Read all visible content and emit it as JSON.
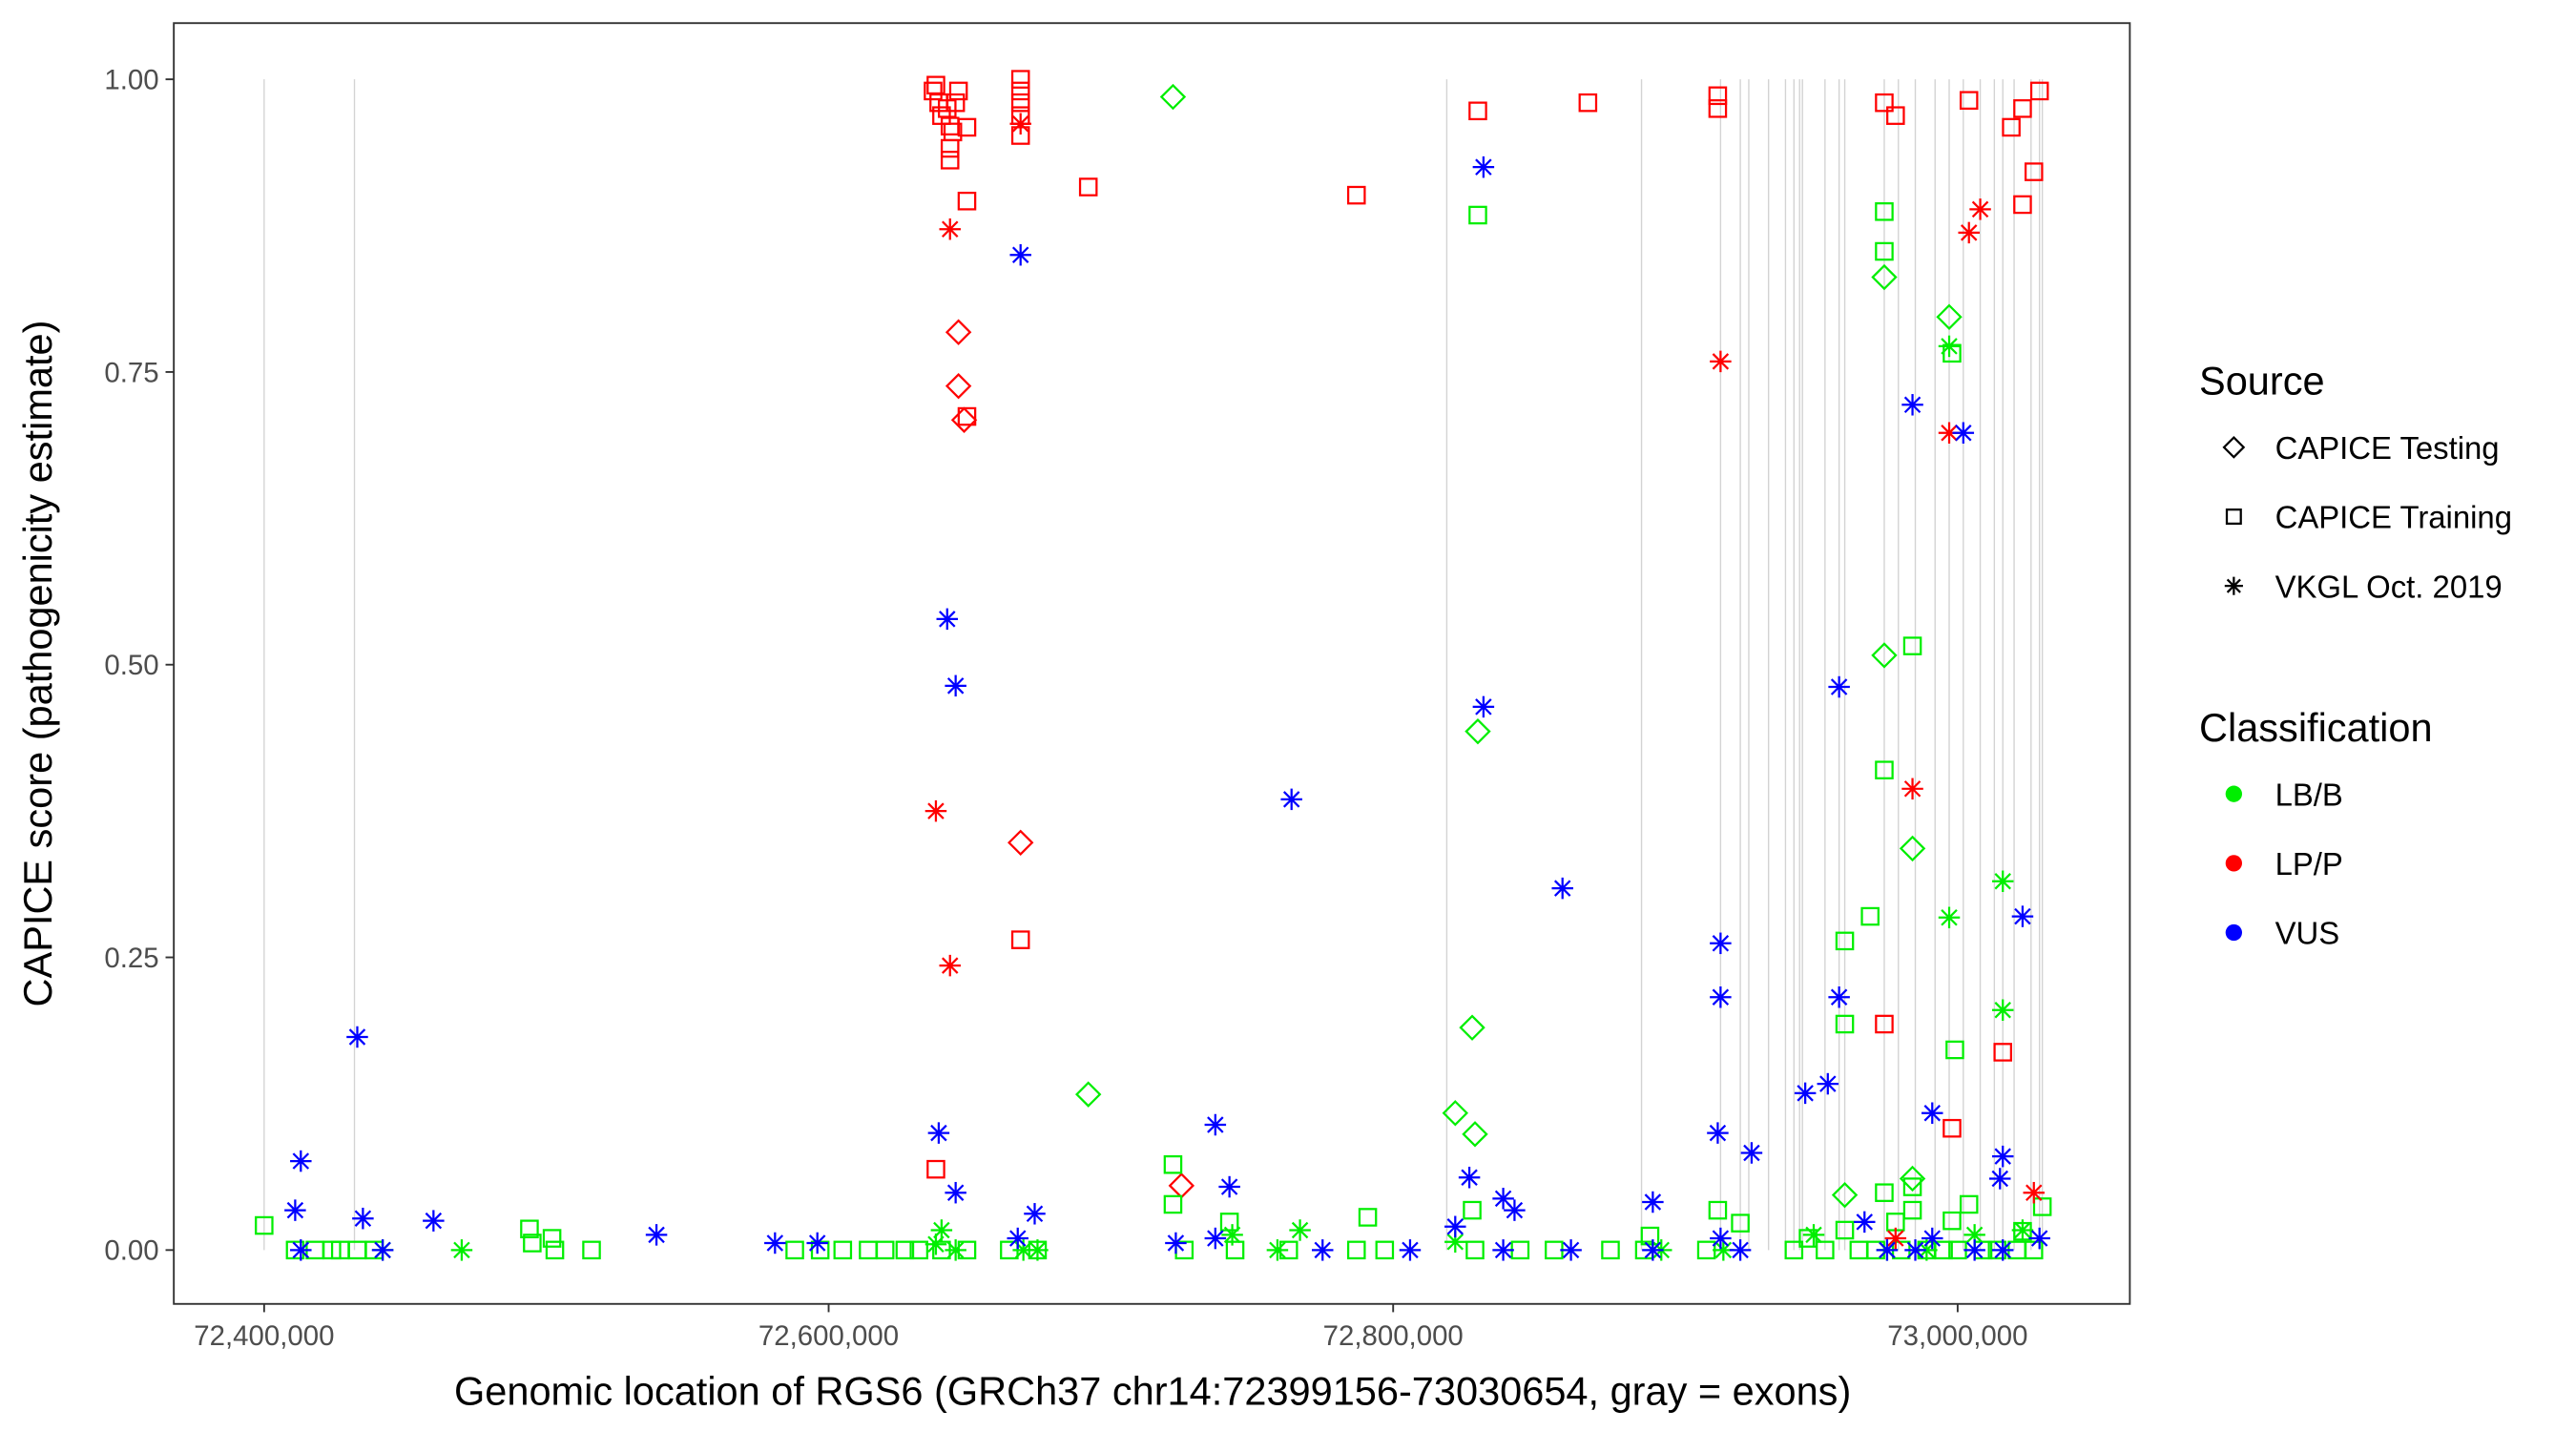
{
  "chart_data": {
    "type": "scatter",
    "xlabel": "Genomic location of RGS6 (GRCh37 chr14:72399156-73030654, gray = exons)",
    "ylabel": "CAPICE score (pathogenicity estimate)",
    "xlim": [
      72368000,
      73061000
    ],
    "ylim": [
      -0.046,
      1.048
    ],
    "xticks": [
      72400000,
      72600000,
      72800000,
      73000000
    ],
    "xtick_labels": [
      "72,400,000",
      "72,600,000",
      "72,800,000",
      "73,000,000"
    ],
    "yticks": [
      0,
      0.25,
      0.5,
      0.75,
      1.0
    ],
    "ytick_labels": [
      "0.00",
      "0.25",
      "0.50",
      "0.75",
      "1.00"
    ],
    "grid": false,
    "legend_placement": "right",
    "exons": [
      72400000,
      72432000,
      72819000,
      72888000,
      72916000,
      72923000,
      72926000,
      72933000,
      72939000,
      72942000,
      72944000,
      72945000,
      72953000,
      72958000,
      72960000,
      72974000,
      72979000,
      72985000,
      72992000,
      72997000,
      73002000,
      73008000,
      73013000,
      73016000,
      73020000,
      73026000,
      73029000,
      73030000
    ],
    "exon_color": "#d3d3d3",
    "legend": {
      "source_title": "Source",
      "source_items": [
        {
          "label": "CAPICE Testing",
          "shape": "diamond"
        },
        {
          "label": "CAPICE Training",
          "shape": "square"
        },
        {
          "label": "VKGL Oct. 2019",
          "shape": "asterisk"
        }
      ],
      "class_title": "Classification",
      "class_items": [
        {
          "label": "LB/B",
          "color": "#00ee00"
        },
        {
          "label": "LP/P",
          "color": "#ff0000"
        },
        {
          "label": "VUS",
          "color": "#0000ff"
        }
      ]
    },
    "series": [
      {
        "source": "CAPICE Testing",
        "classification": "LP/P",
        "points": [
          [
            72646000,
            0.784
          ],
          [
            72646000,
            0.738
          ],
          [
            72648000,
            0.709
          ],
          [
            72668000,
            0.348
          ],
          [
            72725000,
            0.055
          ]
        ]
      },
      {
        "source": "CAPICE Testing",
        "classification": "LB/B",
        "points": [
          [
            72722000,
            0.985
          ],
          [
            72692000,
            0.133
          ],
          [
            72830000,
            0.443
          ],
          [
            72828000,
            0.19
          ],
          [
            72822000,
            0.117
          ],
          [
            72829000,
            0.099
          ],
          [
            72974000,
            0.831
          ],
          [
            72997000,
            0.797
          ],
          [
            72974000,
            0.508
          ],
          [
            72984000,
            0.343
          ],
          [
            72960000,
            0.047
          ],
          [
            72984000,
            0.061
          ]
        ]
      },
      {
        "source": "CAPICE Training",
        "classification": "LP/P",
        "points": [
          [
            72637000,
            0.99
          ],
          [
            72638000,
            0.995
          ],
          [
            72639000,
            0.98
          ],
          [
            72640000,
            0.969
          ],
          [
            72642000,
            0.975
          ],
          [
            72643000,
            0.96
          ],
          [
            72645000,
            0.98
          ],
          [
            72646000,
            0.99
          ],
          [
            72644000,
            0.955
          ],
          [
            72643000,
            0.941
          ],
          [
            72643000,
            0.931
          ],
          [
            72649000,
            0.959
          ],
          [
            72649000,
            0.896
          ],
          [
            72649000,
            0.712
          ],
          [
            72638000,
            0.069
          ],
          [
            72668000,
            1.0
          ],
          [
            72668000,
            0.99
          ],
          [
            72668000,
            0.98
          ],
          [
            72668000,
            0.969
          ],
          [
            72668000,
            0.952
          ],
          [
            72668000,
            0.265
          ],
          [
            72692000,
            0.908
          ],
          [
            72787000,
            0.901
          ],
          [
            72830000,
            0.973
          ],
          [
            72869000,
            0.98
          ],
          [
            72915000,
            0.986
          ],
          [
            72915000,
            0.975
          ],
          [
            72974000,
            0.98
          ],
          [
            72978000,
            0.969
          ],
          [
            72974000,
            0.193
          ],
          [
            72998000,
            0.104
          ],
          [
            73004000,
            0.982
          ],
          [
            73019000,
            0.959
          ],
          [
            73023000,
            0.975
          ],
          [
            73029000,
            0.99
          ],
          [
            73027000,
            0.921
          ],
          [
            73023000,
            0.893
          ],
          [
            73016000,
            0.169
          ]
        ]
      },
      {
        "source": "CAPICE Training",
        "classification": "LB/B",
        "points": [
          [
            72400000,
            0.021
          ],
          [
            72411000,
            0
          ],
          [
            72418000,
            0
          ],
          [
            72424000,
            0
          ],
          [
            72427000,
            0
          ],
          [
            72433000,
            0
          ],
          [
            72439000,
            0
          ],
          [
            72494000,
            0.018
          ],
          [
            72495000,
            0.006
          ],
          [
            72502000,
            0.01
          ],
          [
            72503000,
            0
          ],
          [
            72516000,
            0
          ],
          [
            72588000,
            0
          ],
          [
            72597000,
            0
          ],
          [
            72605000,
            0
          ],
          [
            72614000,
            0
          ],
          [
            72620000,
            0
          ],
          [
            72627000,
            0
          ],
          [
            72632000,
            0
          ],
          [
            72640000,
            0
          ],
          [
            72649000,
            0
          ],
          [
            72664000,
            0
          ],
          [
            72674000,
            0
          ],
          [
            72722000,
            0.073
          ],
          [
            72722000,
            0.039
          ],
          [
            72726000,
            0
          ],
          [
            72742000,
            0.024
          ],
          [
            72744000,
            0
          ],
          [
            72763000,
            0
          ],
          [
            72791000,
            0.028
          ],
          [
            72787000,
            0
          ],
          [
            72797000,
            0
          ],
          [
            72830000,
            0.884
          ],
          [
            72828000,
            0.034
          ],
          [
            72829000,
            0
          ],
          [
            72845000,
            0
          ],
          [
            72857000,
            0
          ],
          [
            72877000,
            0
          ],
          [
            72891000,
            0.012
          ],
          [
            72889000,
            0
          ],
          [
            72915000,
            0.034
          ],
          [
            72923000,
            0.023
          ],
          [
            72911000,
            0
          ],
          [
            72942000,
            0
          ],
          [
            72947000,
            0.01
          ],
          [
            72969000,
            0.285
          ],
          [
            72960000,
            0.264
          ],
          [
            72960000,
            0.193
          ],
          [
            72974000,
            0.887
          ],
          [
            72974000,
            0.853
          ],
          [
            72984000,
            0.516
          ],
          [
            72974000,
            0.41
          ],
          [
            72998000,
            0.766
          ],
          [
            72999000,
            0.171
          ],
          [
            72974000,
            0.049
          ],
          [
            72984000,
            0.054
          ],
          [
            72984000,
            0.034
          ],
          [
            72998000,
            0.025
          ],
          [
            73004000,
            0.039
          ],
          [
            73030000,
            0.037
          ],
          [
            73023000,
            0.016
          ],
          [
            72960000,
            0.017
          ],
          [
            72978000,
            0.024
          ],
          [
            72953000,
            0
          ],
          [
            72965000,
            0
          ],
          [
            72971000,
            0
          ],
          [
            72980000,
            0
          ],
          [
            72989000,
            0
          ],
          [
            72995000,
            0
          ],
          [
            73000000,
            0
          ],
          [
            73009000,
            0
          ],
          [
            73014000,
            0
          ],
          [
            73021000,
            0
          ],
          [
            73027000,
            0
          ]
        ]
      },
      {
        "source": "VKGL Oct. 2019",
        "classification": "LB/B",
        "points": [
          [
            72442000,
            0
          ],
          [
            72470000,
            0
          ],
          [
            72638000,
            0.005
          ],
          [
            72640000,
            0.017
          ],
          [
            72645000,
            0
          ],
          [
            72669000,
            0
          ],
          [
            72674000,
            0
          ],
          [
            72743000,
            0.013
          ],
          [
            72767000,
            0.017
          ],
          [
            72759000,
            0
          ],
          [
            72822000,
            0.007
          ],
          [
            72895000,
            0
          ],
          [
            72949000,
            0.013
          ],
          [
            72975000,
            0
          ],
          [
            72989000,
            0
          ],
          [
            72997000,
            0.772
          ],
          [
            72997000,
            0.284
          ],
          [
            73016000,
            0.315
          ],
          [
            73016000,
            0.205
          ],
          [
            73006000,
            0.013
          ],
          [
            73023000,
            0.017
          ],
          [
            72917000,
            0
          ]
        ]
      },
      {
        "source": "VKGL Oct. 2019",
        "classification": "LP/P",
        "points": [
          [
            72643000,
            0.872
          ],
          [
            72638000,
            0.375
          ],
          [
            72643000,
            0.243
          ],
          [
            72668000,
            0.962
          ],
          [
            72916000,
            0.759
          ],
          [
            72997000,
            0.698
          ],
          [
            72984000,
            0.394
          ],
          [
            73004000,
            0.869
          ],
          [
            73008000,
            0.889
          ],
          [
            73027000,
            0.049
          ],
          [
            72978000,
            0.01
          ]
        ]
      },
      {
        "source": "VKGL Oct. 2019",
        "classification": "VUS",
        "points": [
          [
            72413000,
            0.076
          ],
          [
            72411000,
            0.034
          ],
          [
            72433000,
            0.182
          ],
          [
            72435000,
            0.027
          ],
          [
            72460000,
            0.025
          ],
          [
            72539000,
            0.013
          ],
          [
            72581000,
            0.006
          ],
          [
            72596000,
            0.006
          ],
          [
            72413000,
            0
          ],
          [
            72442000,
            0
          ],
          [
            72642000,
            0.539
          ],
          [
            72645000,
            0.482
          ],
          [
            72639000,
            0.1
          ],
          [
            72645000,
            0.049
          ],
          [
            72668000,
            0.85
          ],
          [
            72667000,
            0.01
          ],
          [
            72673000,
            0.031
          ],
          [
            72737000,
            0.107
          ],
          [
            72742000,
            0.054
          ],
          [
            72737000,
            0.01
          ],
          [
            72764000,
            0.385
          ],
          [
            72723000,
            0.006
          ],
          [
            72775000,
            0
          ],
          [
            72806000,
            0
          ],
          [
            72832000,
            0.925
          ],
          [
            72832000,
            0.464
          ],
          [
            72827000,
            0.062
          ],
          [
            72839000,
            0.044
          ],
          [
            72843000,
            0.034
          ],
          [
            72822000,
            0.02
          ],
          [
            72860000,
            0.309
          ],
          [
            72892000,
            0.041
          ],
          [
            72916000,
            0.262
          ],
          [
            72916000,
            0.216
          ],
          [
            72915000,
            0.1
          ],
          [
            72927000,
            0.083
          ],
          [
            72916000,
            0.01
          ],
          [
            72946000,
            0.134
          ],
          [
            72954000,
            0.142
          ],
          [
            72958000,
            0.481
          ],
          [
            72958000,
            0.216
          ],
          [
            72984000,
            0.722
          ],
          [
            73002000,
            0.698
          ],
          [
            72991000,
            0.117
          ],
          [
            72967000,
            0.024
          ],
          [
            73016000,
            0.08
          ],
          [
            73015000,
            0.061
          ],
          [
            73023000,
            0.285
          ],
          [
            73029000,
            0.01
          ],
          [
            72991000,
            0.01
          ],
          [
            72892000,
            0
          ],
          [
            72863000,
            0
          ],
          [
            72839000,
            0
          ],
          [
            72923000,
            0
          ],
          [
            72975000,
            0
          ],
          [
            73006000,
            0
          ],
          [
            73016000,
            0
          ],
          [
            72985000,
            0
          ]
        ]
      }
    ]
  }
}
